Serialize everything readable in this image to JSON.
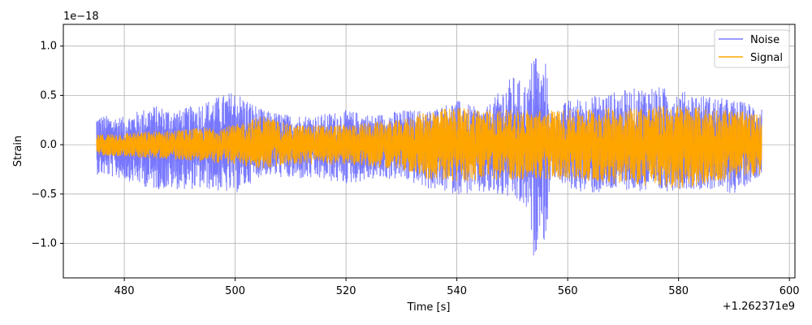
{
  "chart_data": {
    "type": "line",
    "title": "",
    "xlabel": "Time [s]",
    "ylabel": "Strain",
    "x_offset_label": "+1.262371e9",
    "y_scale_label": "1e−18",
    "xlim": [
      469,
      601
    ],
    "ylim": [
      -1.35,
      1.22
    ],
    "x_range": [
      475,
      595
    ],
    "xticks": [
      480,
      500,
      520,
      540,
      560,
      580,
      600
    ],
    "xtick_labels": [
      "480",
      "500",
      "520",
      "540",
      "560",
      "580",
      "600"
    ],
    "yticks": [
      -1.0,
      -0.5,
      0.0,
      0.5,
      1.0
    ],
    "ytick_labels": [
      "−1.0",
      "−0.5",
      "0.0",
      "0.5",
      "1.0"
    ],
    "grid": true,
    "legend_position": "top-right",
    "series": [
      {
        "name": "Noise",
        "color": "#7878ff",
        "envelope": {
          "t": [
            475,
            480,
            485,
            490,
            495,
            500,
            505,
            510,
            515,
            520,
            525,
            530,
            535,
            540,
            545,
            550,
            553,
            554,
            555,
            556,
            557,
            560,
            565,
            570,
            575,
            580,
            585,
            590,
            595
          ],
          "upper": [
            0.3,
            0.28,
            0.4,
            0.35,
            0.45,
            0.55,
            0.35,
            0.3,
            0.3,
            0.35,
            0.3,
            0.35,
            0.35,
            0.45,
            0.35,
            0.7,
            0.6,
            1.1,
            0.7,
            0.85,
            0.3,
            0.45,
            0.5,
            0.55,
            0.6,
            0.55,
            0.5,
            0.45,
            0.4
          ],
          "lower": [
            -0.3,
            -0.35,
            -0.45,
            -0.45,
            -0.45,
            -0.5,
            -0.3,
            -0.35,
            -0.35,
            -0.4,
            -0.35,
            -0.35,
            -0.45,
            -0.5,
            -0.5,
            -0.55,
            -0.7,
            -1.22,
            -0.8,
            -1.05,
            -0.3,
            -0.45,
            -0.5,
            -0.45,
            -0.5,
            -0.45,
            -0.45,
            -0.5,
            -0.3
          ]
        }
      },
      {
        "name": "Signal",
        "color": "#ffa500",
        "envelope": {
          "t": [
            475,
            480,
            490,
            500,
            505,
            510,
            520,
            530,
            535,
            540,
            550,
            560,
            570,
            580,
            590,
            595
          ],
          "upper": [
            0.1,
            0.12,
            0.15,
            0.2,
            0.3,
            0.2,
            0.2,
            0.25,
            0.35,
            0.38,
            0.35,
            0.35,
            0.38,
            0.4,
            0.35,
            0.3
          ],
          "lower": [
            -0.1,
            -0.12,
            -0.15,
            -0.2,
            -0.25,
            -0.2,
            -0.2,
            -0.25,
            -0.35,
            -0.38,
            -0.35,
            -0.35,
            -0.4,
            -0.45,
            -0.35,
            -0.3
          ]
        }
      }
    ]
  }
}
